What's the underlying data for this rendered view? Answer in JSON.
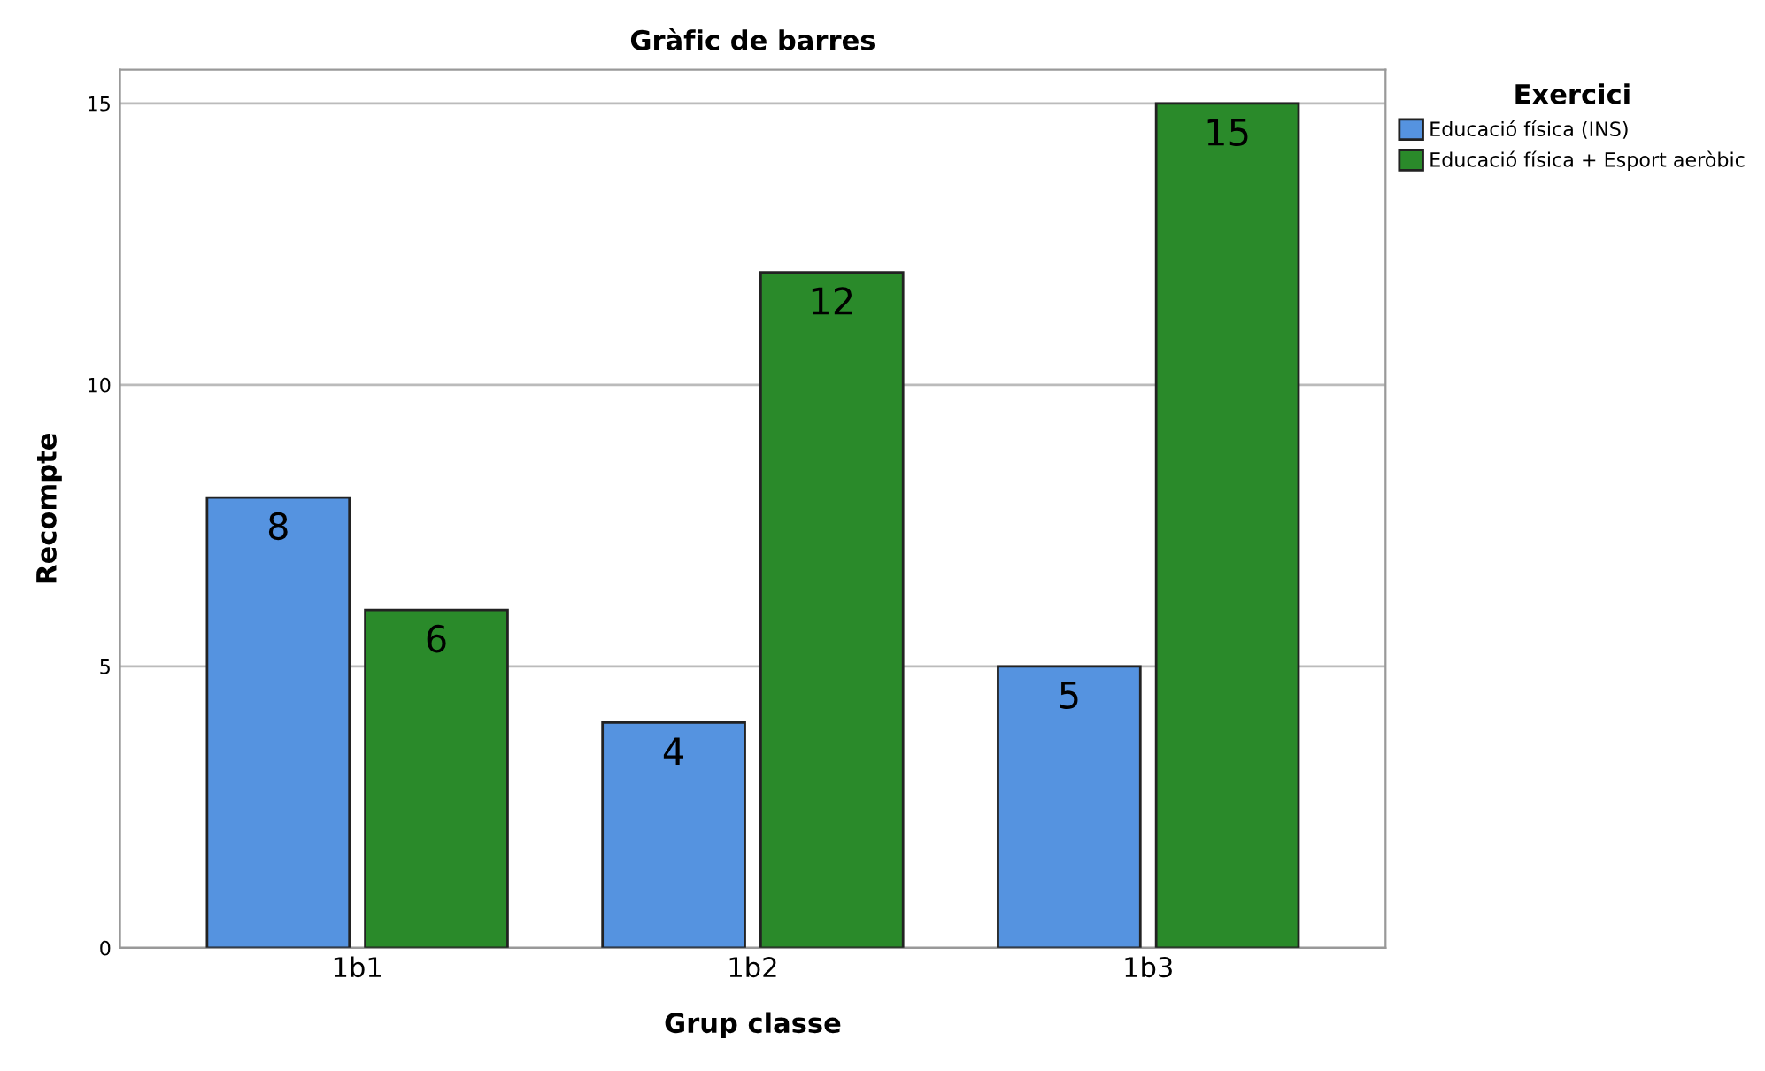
{
  "chart_data": {
    "type": "bar",
    "title": "Gràfic de barres",
    "xlabel": "Grup classe",
    "ylabel": "Recompte",
    "legend_title": "Exercici",
    "categories": [
      "1b1",
      "1b2",
      "1b3"
    ],
    "series": [
      {
        "name": "Educació física (INS)",
        "color": "#5593e0",
        "values": [
          8,
          4,
          5
        ]
      },
      {
        "name": "Educació física + Esport aeròbic",
        "color": "#2a8a2a",
        "values": [
          6,
          12,
          15
        ]
      }
    ],
    "ylim": [
      0,
      15.6
    ],
    "yticks": [
      0,
      5,
      10,
      15
    ],
    "grid": "y",
    "legend": "right",
    "data_labels": true
  }
}
